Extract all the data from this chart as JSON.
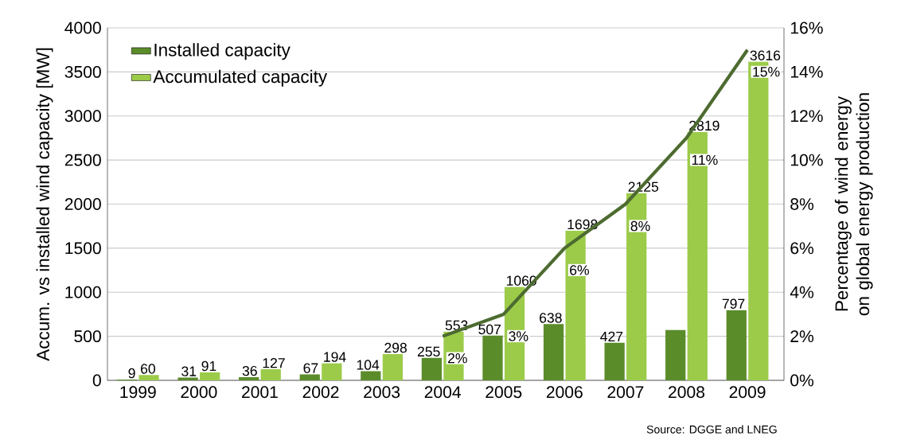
{
  "chart_data": {
    "type": "bar",
    "categories": [
      "1999",
      "2000",
      "2001",
      "2002",
      "2003",
      "2004",
      "2005",
      "2006",
      "2007",
      "2008",
      "2009"
    ],
    "ylabel": "Accum. vs installed wind capacity [MW]",
    "y2label": "Percentage of wind energy on global energy production",
    "ylim": [
      0,
      4000
    ],
    "yticks": [
      0,
      500,
      1000,
      1500,
      2000,
      2500,
      3000,
      3500,
      4000
    ],
    "y2lim": [
      0,
      16
    ],
    "y2ticks": [
      {
        "value": 0,
        "label": "0%"
      },
      {
        "value": 2,
        "label": "2%"
      },
      {
        "value": 4,
        "label": "4%"
      },
      {
        "value": 6,
        "label": "6%"
      },
      {
        "value": 8,
        "label": "8%"
      },
      {
        "value": 10,
        "label": "10%"
      },
      {
        "value": 12,
        "label": "12%"
      },
      {
        "value": 14,
        "label": "14%"
      },
      {
        "value": 16,
        "label": "16%"
      }
    ],
    "grid": "y",
    "legend": "top left",
    "annotations": [
      "Source: DGGE and LNEG"
    ],
    "series": [
      {
        "name": "Installed capacity",
        "color": "#5b8c2a",
        "values": [
          9,
          31,
          36,
          67,
          104,
          255,
          507,
          638,
          427,
          570,
          797
        ],
        "value_labels": [
          "9",
          "31",
          "36",
          "67",
          "104",
          "255",
          "507",
          "638",
          "427",
          null,
          "797"
        ]
      },
      {
        "name": "Accumulated capacity",
        "color": "#9ccb4a",
        "values": [
          60,
          91,
          127,
          194,
          298,
          553,
          1060,
          1698,
          2125,
          2819,
          3616
        ],
        "value_labels": [
          "60",
          "91",
          "127",
          "194",
          "298",
          "553",
          "1060",
          "1698",
          "2125",
          "2819",
          "3616"
        ]
      },
      {
        "type": "line",
        "axis": "y2",
        "color": "#4d6b30",
        "values": [
          null,
          null,
          null,
          null,
          null,
          2,
          3,
          6,
          8,
          11,
          15
        ],
        "value_labels": [
          null,
          null,
          null,
          null,
          null,
          "2%",
          "3%",
          "6%",
          "8%",
          "11%",
          "15%"
        ]
      }
    ]
  }
}
